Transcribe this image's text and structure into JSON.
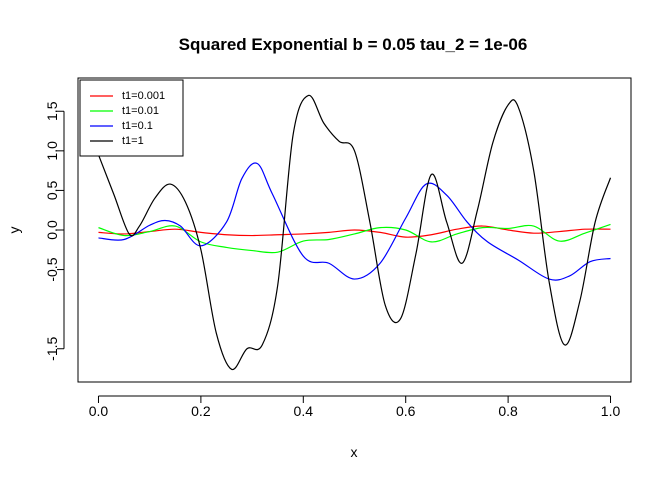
{
  "chart_data": {
    "type": "line",
    "title": "Squared Exponential  b = 0.05  tau_2 = 1e-06",
    "xlabel": "x",
    "ylabel": "y",
    "xlim": [
      -0.04,
      1.04
    ],
    "ylim": [
      -1.92,
      1.92
    ],
    "xticks": [
      0.0,
      0.2,
      0.4,
      0.6,
      0.8,
      1.0
    ],
    "xtick_labels": [
      "0.0",
      "0.2",
      "0.4",
      "0.6",
      "0.8",
      "1.0"
    ],
    "yticks": [
      -1.5,
      -0.5,
      0.0,
      0.5,
      1.0,
      1.5
    ],
    "ytick_labels": [
      "-1.5",
      "-0.5",
      "0.0",
      "0.5",
      "1.0",
      "1.5"
    ],
    "grid": false,
    "legend_position": "top-left",
    "series": [
      {
        "name": "t1=0.001",
        "color": "#ff0000",
        "x": [
          0.0,
          0.05,
          0.1,
          0.15,
          0.2,
          0.25,
          0.3,
          0.35,
          0.4,
          0.45,
          0.5,
          0.55,
          0.6,
          0.65,
          0.7,
          0.75,
          0.8,
          0.85,
          0.9,
          0.95,
          1.0
        ],
        "y": [
          -0.03,
          -0.05,
          -0.02,
          0.01,
          -0.03,
          -0.06,
          -0.07,
          -0.06,
          -0.05,
          -0.03,
          0.0,
          -0.03,
          -0.09,
          -0.06,
          0.01,
          0.05,
          0.0,
          -0.04,
          -0.02,
          0.01,
          0.01
        ]
      },
      {
        "name": "t1=0.01",
        "color": "#00ff00",
        "x": [
          0.0,
          0.05,
          0.1,
          0.15,
          0.2,
          0.25,
          0.3,
          0.35,
          0.4,
          0.45,
          0.5,
          0.55,
          0.6,
          0.65,
          0.7,
          0.75,
          0.8,
          0.85,
          0.9,
          0.95,
          1.0
        ],
        "y": [
          0.03,
          -0.07,
          -0.02,
          0.05,
          -0.15,
          -0.22,
          -0.26,
          -0.28,
          -0.14,
          -0.12,
          -0.05,
          0.03,
          0.0,
          -0.15,
          -0.05,
          0.03,
          0.02,
          0.05,
          -0.14,
          -0.04,
          0.07
        ]
      },
      {
        "name": "t1=0.1",
        "color": "#0000ff",
        "x": [
          0.0,
          0.05,
          0.1,
          0.13,
          0.16,
          0.2,
          0.25,
          0.28,
          0.31,
          0.34,
          0.4,
          0.45,
          0.5,
          0.55,
          0.6,
          0.64,
          0.68,
          0.72,
          0.76,
          0.82,
          0.88,
          0.92,
          0.96,
          1.0
        ],
        "y": [
          -0.1,
          -0.12,
          0.06,
          0.12,
          0.05,
          -0.2,
          0.1,
          0.65,
          0.84,
          0.45,
          -0.33,
          -0.42,
          -0.62,
          -0.42,
          0.15,
          0.58,
          0.44,
          0.1,
          -0.15,
          -0.38,
          -0.62,
          -0.58,
          -0.4,
          -0.36
        ]
      },
      {
        "name": "t1=1",
        "color": "#000000",
        "x": [
          0.0,
          0.03,
          0.06,
          0.08,
          0.11,
          0.14,
          0.17,
          0.2,
          0.23,
          0.26,
          0.29,
          0.32,
          0.35,
          0.38,
          0.41,
          0.44,
          0.47,
          0.5,
          0.53,
          0.56,
          0.59,
          0.62,
          0.65,
          0.68,
          0.71,
          0.74,
          0.77,
          0.8,
          0.82,
          0.85,
          0.88,
          0.91,
          0.94,
          0.97,
          1.0
        ],
        "y": [
          0.95,
          0.45,
          -0.05,
          0.05,
          0.4,
          0.58,
          0.35,
          -0.25,
          -1.3,
          -1.76,
          -1.5,
          -1.45,
          -0.7,
          1.2,
          1.7,
          1.35,
          1.12,
          1.0,
          0.1,
          -0.95,
          -1.12,
          -0.3,
          0.7,
          0.1,
          -0.42,
          0.25,
          1.1,
          1.58,
          1.55,
          0.75,
          -0.65,
          -1.45,
          -0.9,
          0.1,
          0.66
        ]
      }
    ]
  }
}
